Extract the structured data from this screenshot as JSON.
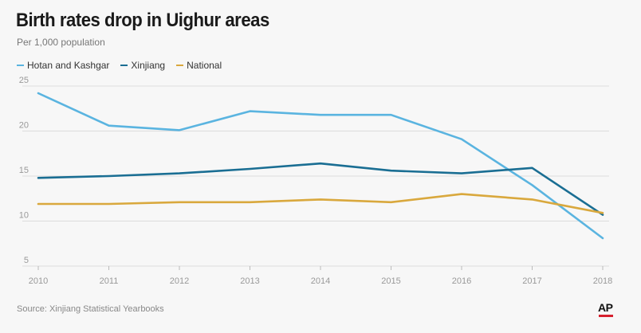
{
  "header": {
    "title": "Birth rates drop in Uighur areas",
    "subtitle": "Per 1,000 population"
  },
  "footer": {
    "source": "Source: Xinjiang Statistical Yearbooks",
    "logo_text": "AP"
  },
  "chart_data": {
    "type": "line",
    "title": "Birth rates drop in Uighur areas",
    "ylabel": "Per 1,000 population",
    "xlabel": "",
    "x": [
      "2010",
      "2011",
      "2012",
      "2013",
      "2014",
      "2015",
      "2016",
      "2017",
      "2018"
    ],
    "ylim": [
      5,
      25
    ],
    "yticks": [
      "5",
      "10",
      "15",
      "20",
      "25"
    ],
    "grid": true,
    "legend_position": "top-left",
    "series": [
      {
        "name": "Hotan and Kashgar",
        "color": "#5ab4e0",
        "values": [
          24.2,
          20.6,
          20.1,
          22.2,
          21.8,
          21.8,
          19.1,
          14.0,
          8.1
        ]
      },
      {
        "name": "Xinjiang",
        "color": "#1a6e93",
        "values": [
          14.8,
          15.0,
          15.3,
          15.8,
          16.4,
          15.6,
          15.3,
          15.9,
          10.7
        ]
      },
      {
        "name": "National",
        "color": "#d9a83d",
        "values": [
          11.9,
          11.9,
          12.1,
          12.1,
          12.4,
          12.1,
          13.0,
          12.4,
          10.9
        ]
      }
    ]
  }
}
